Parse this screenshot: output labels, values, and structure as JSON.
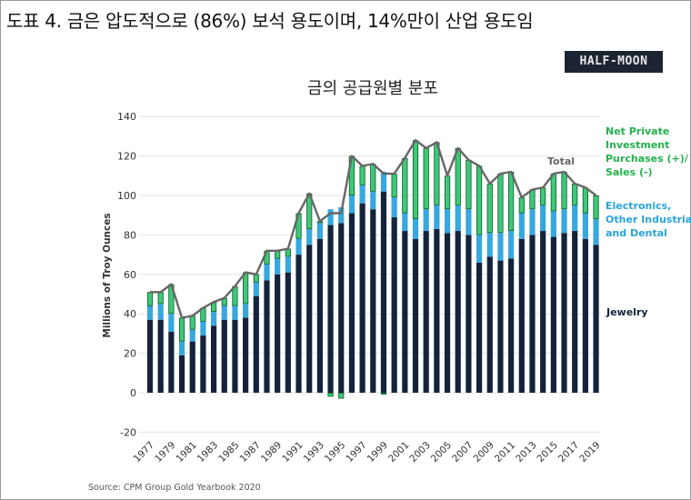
{
  "page": {
    "title": "도표 4. 금은 압도적으로 (86%) 보석 용도이며, 14%만이 산업 용도임",
    "logo_text": "HALF-MOON"
  },
  "colors": {
    "jewelry": "#14233b",
    "industrial": "#37a8df",
    "investment": "#3ec878",
    "investment_border": "#0d5a2c",
    "total_line": "#666666",
    "investment_label": "#22b24c",
    "industrial_label": "#2aa3d8",
    "jewelry_label": "#14233b"
  },
  "chart_data": {
    "type": "bar",
    "stacked": true,
    "title": "금의 공급원별 분포",
    "ylabel": "Millions of Troy Ounces",
    "xlabel": "",
    "ylim": [
      -20,
      140
    ],
    "yticks": [
      -20,
      0,
      20,
      40,
      60,
      80,
      100,
      120,
      140
    ],
    "source": "Source: CPM Group Gold Yearbook 2020",
    "categories": [
      "1977",
      "1978",
      "1979",
      "1980",
      "1981",
      "1982",
      "1983",
      "1984",
      "1985",
      "1986",
      "1987",
      "1988",
      "1989",
      "1990",
      "1991",
      "1992",
      "1993",
      "1994",
      "1995",
      "1996",
      "1997",
      "1998",
      "1999",
      "2000",
      "2001",
      "2002",
      "2003",
      "2004",
      "2005",
      "2006",
      "2007",
      "2008",
      "2009",
      "2010",
      "2011",
      "2012",
      "2013",
      "2014",
      "2015",
      "2016",
      "2017",
      "2018",
      "2019"
    ],
    "tick_labels": [
      "1977",
      "1979",
      "1981",
      "1983",
      "1985",
      "1987",
      "1989",
      "1991",
      "1993",
      "1995",
      "1997",
      "1999",
      "2001",
      "2003",
      "2005",
      "2007",
      "2009",
      "2011",
      "2013",
      "2015",
      "2017",
      "2019"
    ],
    "series": [
      {
        "name": "Jewelry",
        "label": "Jewelry",
        "values": [
          37,
          37,
          31,
          19,
          26,
          29,
          34,
          37,
          37,
          38,
          49,
          57,
          60,
          61,
          70,
          75,
          78,
          85,
          86,
          91,
          96,
          93,
          102,
          89,
          82,
          78,
          82,
          83,
          81,
          82,
          80,
          66,
          69,
          67,
          68,
          78,
          80,
          82,
          79,
          81,
          82,
          78,
          75
        ]
      },
      {
        "name": "Electronics, Other Industrial and Dental",
        "label": "Electronics, Other Industrial and Dental",
        "values": [
          7,
          8,
          9,
          7,
          6,
          7,
          7,
          7,
          7,
          7,
          7,
          8,
          8,
          8,
          8,
          8,
          8,
          8,
          8,
          9,
          9,
          9,
          10,
          10,
          9,
          10,
          11,
          12,
          12,
          13,
          13,
          14,
          12,
          14,
          14,
          13,
          13,
          13,
          13,
          12,
          13,
          13,
          13
        ]
      },
      {
        "name": "Net Private Investment Purchases (+)/ Sales (-)",
        "label": "Net Private Investment Purchases (+)/ Sales (-)",
        "values": [
          7,
          6,
          15,
          12,
          7,
          7,
          5,
          4,
          10,
          16,
          4,
          7,
          4,
          4,
          13,
          18,
          1,
          -2,
          -3,
          20,
          10,
          14,
          -1,
          12,
          28,
          40,
          31,
          32,
          17,
          29,
          25,
          35,
          25,
          30,
          30,
          8,
          10,
          9,
          19,
          19,
          11,
          13,
          12
        ]
      }
    ],
    "total": {
      "name": "Total",
      "label": "Total",
      "values": [
        51,
        51,
        55,
        38,
        39,
        43,
        46,
        48,
        54,
        61,
        60,
        72,
        72,
        73,
        91,
        101,
        87,
        91,
        91,
        120,
        115,
        116,
        111,
        111,
        119,
        128,
        124,
        127,
        110,
        124,
        118,
        115,
        106,
        111,
        112,
        99,
        103,
        104,
        111,
        112,
        106,
        104,
        100
      ]
    }
  }
}
